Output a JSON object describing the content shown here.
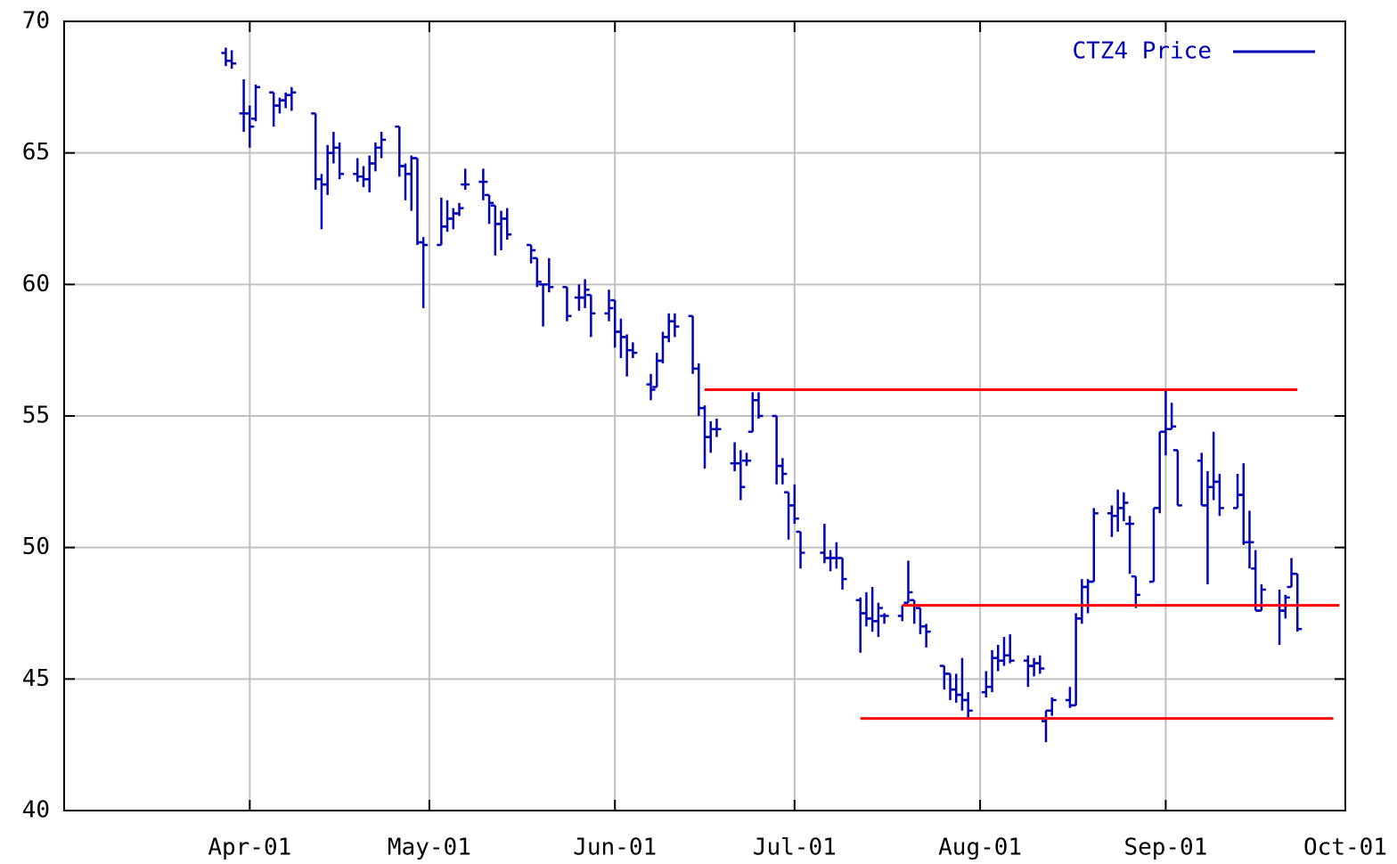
{
  "chart_data": {
    "type": "ohlc",
    "x": [
      "Mar-28",
      "Mar-29",
      "Mar-31",
      "Apr-01",
      "Apr-02",
      "Apr-05",
      "Apr-06",
      "Apr-07",
      "Apr-08",
      "Apr-12",
      "Apr-13",
      "Apr-14",
      "Apr-15",
      "Apr-16",
      "Apr-19",
      "Apr-20",
      "Apr-21",
      "Apr-22",
      "Apr-23",
      "Apr-26",
      "Apr-27",
      "Apr-28",
      "Apr-29",
      "Apr-30",
      "May-03",
      "May-04",
      "May-05",
      "May-06",
      "May-07",
      "May-10",
      "May-11",
      "May-12",
      "May-13",
      "May-14",
      "May-18",
      "May-19",
      "May-20",
      "May-21",
      "May-24",
      "May-26",
      "May-27",
      "May-28",
      "May-31",
      "Jun-01",
      "Jun-02",
      "Jun-03",
      "Jun-04",
      "Jun-07",
      "Jun-08",
      "Jun-09",
      "Jun-10",
      "Jun-11",
      "Jun-14",
      "Jun-15",
      "Jun-16",
      "Jun-17",
      "Jun-18",
      "Jun-21",
      "Jun-22",
      "Jun-23",
      "Jun-24",
      "Jun-25",
      "Jun-28",
      "Jun-29",
      "Jun-30",
      "Jul-01",
      "Jul-02",
      "Jul-06",
      "Jul-07",
      "Jul-08",
      "Jul-09",
      "Jul-12",
      "Jul-13",
      "Jul-14",
      "Jul-15",
      "Jul-16",
      "Jul-19",
      "Jul-20",
      "Jul-21",
      "Jul-22",
      "Jul-23",
      "Jul-26",
      "Jul-27",
      "Jul-28",
      "Jul-29",
      "Jul-30",
      "Aug-02",
      "Aug-03",
      "Aug-04",
      "Aug-05",
      "Aug-06",
      "Aug-09",
      "Aug-10",
      "Aug-11",
      "Aug-12",
      "Aug-13",
      "Aug-16",
      "Aug-17",
      "Aug-18",
      "Aug-19",
      "Aug-20",
      "Aug-23",
      "Aug-24",
      "Aug-25",
      "Aug-26",
      "Aug-27",
      "Aug-30",
      "Aug-31",
      "Sep-01",
      "Sep-02",
      "Sep-03",
      "Sep-07",
      "Sep-08",
      "Sep-09",
      "Sep-10",
      "Sep-13",
      "Sep-14",
      "Sep-15",
      "Sep-16",
      "Sep-17",
      "Sep-20",
      "Sep-21",
      "Sep-22",
      "Sep-23"
    ],
    "series": [
      {
        "name": "CTZ4 Price",
        "color": "#0000b4",
        "values": [
          [
            68.8,
            69.0,
            68.3,
            68.5
          ],
          [
            68.5,
            68.9,
            68.2,
            68.4
          ],
          [
            66.5,
            67.8,
            65.8,
            66.5
          ],
          [
            66.5,
            66.8,
            65.2,
            66.0
          ],
          [
            66.3,
            67.6,
            66.2,
            67.5
          ],
          [
            67.3,
            67.3,
            66.0,
            66.8
          ],
          [
            66.8,
            67.1,
            66.5,
            67.0
          ],
          [
            67.0,
            67.3,
            66.7,
            67.2
          ],
          [
            67.2,
            67.5,
            66.6,
            67.3
          ],
          [
            66.5,
            66.5,
            63.6,
            64.0
          ],
          [
            64.0,
            64.2,
            62.1,
            63.8
          ],
          [
            63.8,
            65.3,
            63.4,
            65.0
          ],
          [
            65.0,
            65.8,
            64.6,
            65.2
          ],
          [
            65.2,
            65.4,
            64.0,
            64.2
          ],
          [
            64.2,
            64.8,
            63.9,
            64.1
          ],
          [
            64.1,
            64.5,
            63.7,
            64.0
          ],
          [
            64.0,
            64.9,
            63.5,
            64.6
          ],
          [
            64.6,
            65.4,
            64.3,
            65.2
          ],
          [
            65.2,
            65.8,
            64.8,
            65.5
          ],
          [
            66.0,
            66.0,
            64.1,
            64.5
          ],
          [
            64.5,
            64.6,
            63.2,
            64.2
          ],
          [
            64.2,
            64.9,
            62.8,
            64.8
          ],
          [
            64.8,
            64.8,
            61.5,
            61.6
          ],
          [
            61.6,
            61.8,
            59.1,
            61.5
          ],
          [
            61.5,
            63.3,
            61.5,
            62.2
          ],
          [
            62.2,
            63.2,
            62.0,
            62.5
          ],
          [
            62.5,
            62.9,
            62.1,
            62.7
          ],
          [
            62.7,
            63.1,
            62.6,
            62.9
          ],
          [
            63.8,
            64.4,
            63.6,
            63.8
          ],
          [
            63.9,
            64.4,
            63.2,
            63.9
          ],
          [
            63.4,
            63.4,
            62.3,
            63.1
          ],
          [
            63.0,
            63.0,
            61.1,
            62.3
          ],
          [
            62.3,
            62.8,
            61.3,
            62.5
          ],
          [
            62.5,
            62.9,
            61.7,
            61.9
          ],
          [
            61.5,
            61.5,
            60.8,
            61.3
          ],
          [
            61.0,
            61.0,
            59.9,
            60.1
          ],
          [
            60.0,
            60.0,
            58.4,
            60.0
          ],
          [
            60.0,
            61.0,
            59.7,
            59.9
          ],
          [
            59.9,
            59.9,
            58.6,
            58.8
          ],
          [
            59.5,
            60.0,
            59.0,
            59.5
          ],
          [
            59.5,
            60.2,
            59.1,
            59.8
          ],
          [
            59.6,
            59.6,
            58.0,
            58.9
          ],
          [
            58.9,
            59.8,
            58.6,
            59.1
          ],
          [
            59.4,
            59.4,
            57.6,
            58.2
          ],
          [
            58.2,
            58.7,
            57.2,
            58.0
          ],
          [
            58.0,
            58.1,
            56.5,
            57.5
          ],
          [
            57.5,
            57.8,
            57.2,
            57.4
          ],
          [
            56.2,
            56.6,
            55.6,
            56.0
          ],
          [
            56.1,
            57.4,
            56.1,
            57.1
          ],
          [
            57.1,
            58.2,
            57.0,
            58.0
          ],
          [
            58.0,
            58.9,
            57.8,
            58.6
          ],
          [
            58.6,
            58.9,
            58.0,
            58.4
          ],
          [
            58.8,
            58.8,
            56.6,
            56.8
          ],
          [
            56.8,
            57.0,
            55.0,
            55.3
          ],
          [
            55.3,
            55.4,
            53.0,
            54.2
          ],
          [
            54.2,
            54.8,
            53.6,
            54.5
          ],
          [
            54.5,
            54.9,
            54.2,
            54.5
          ],
          [
            53.2,
            54.0,
            52.9,
            53.2
          ],
          [
            53.2,
            53.7,
            51.8,
            52.3
          ],
          [
            53.3,
            53.6,
            53.1,
            53.3
          ],
          [
            54.4,
            55.9,
            54.4,
            55.6
          ],
          [
            55.6,
            55.9,
            54.9,
            55.0
          ],
          [
            55.0,
            55.0,
            52.4,
            53.1
          ],
          [
            53.1,
            53.4,
            52.4,
            52.8
          ],
          [
            52.1,
            52.1,
            50.3,
            51.6
          ],
          [
            51.6,
            52.4,
            50.9,
            51.1
          ],
          [
            50.6,
            50.6,
            49.2,
            49.8
          ],
          [
            49.8,
            50.9,
            49.4,
            49.6
          ],
          [
            49.6,
            49.9,
            49.1,
            49.6
          ],
          [
            49.6,
            50.2,
            49.2,
            49.6
          ],
          [
            49.6,
            49.6,
            48.4,
            48.8
          ],
          [
            48.0,
            48.1,
            46.0,
            47.5
          ],
          [
            47.5,
            48.3,
            47.0,
            47.3
          ],
          [
            47.3,
            48.5,
            46.8,
            47.2
          ],
          [
            47.2,
            47.9,
            46.6,
            47.7
          ],
          [
            47.4,
            47.5,
            47.1,
            47.4
          ],
          [
            47.4,
            47.8,
            47.2,
            47.8
          ],
          [
            47.9,
            49.5,
            47.9,
            48.3
          ],
          [
            48.0,
            48.0,
            47.1,
            47.8
          ],
          [
            47.7,
            47.7,
            46.7,
            47.0
          ],
          [
            47.0,
            47.1,
            46.2,
            46.8
          ],
          [
            45.5,
            45.5,
            44.6,
            45.2
          ],
          [
            45.2,
            45.2,
            44.2,
            44.6
          ],
          [
            44.6,
            45.2,
            44.1,
            44.4
          ],
          [
            44.4,
            45.8,
            43.8,
            44.2
          ],
          [
            44.2,
            44.5,
            43.5,
            43.8
          ],
          [
            44.5,
            45.3,
            44.3,
            44.7
          ],
          [
            44.7,
            46.1,
            44.5,
            45.8
          ],
          [
            45.8,
            46.3,
            45.3,
            45.7
          ],
          [
            45.7,
            46.6,
            45.5,
            45.9
          ],
          [
            45.9,
            46.7,
            45.6,
            45.7
          ],
          [
            45.7,
            45.9,
            44.7,
            45.5
          ],
          [
            45.5,
            45.8,
            45.1,
            45.6
          ],
          [
            45.6,
            45.9,
            45.2,
            45.4
          ],
          [
            43.4,
            43.8,
            42.6,
            43.8
          ],
          [
            43.8,
            44.3,
            43.6,
            44.2
          ],
          [
            44.2,
            44.7,
            43.9,
            44.0
          ],
          [
            44.0,
            47.5,
            44.0,
            47.3
          ],
          [
            47.3,
            48.8,
            47.1,
            48.5
          ],
          [
            48.5,
            48.8,
            47.5,
            48.7
          ],
          [
            48.7,
            51.5,
            48.7,
            51.3
          ],
          [
            51.3,
            51.6,
            50.4,
            51.2
          ],
          [
            51.2,
            52.2,
            50.6,
            51.5
          ],
          [
            51.5,
            52.1,
            51.0,
            51.7
          ],
          [
            50.9,
            51.2,
            49.0,
            50.9
          ],
          [
            48.9,
            48.9,
            47.7,
            48.2
          ],
          [
            48.7,
            51.5,
            48.7,
            51.5
          ],
          [
            51.5,
            54.4,
            51.3,
            54.4
          ],
          [
            54.4,
            56.0,
            53.5,
            54.5
          ],
          [
            54.5,
            55.5,
            54.5,
            54.6
          ],
          [
            53.7,
            53.7,
            51.6,
            51.6
          ],
          [
            53.3,
            53.6,
            51.6,
            51.6
          ],
          [
            51.6,
            52.9,
            48.6,
            52.3
          ],
          [
            52.3,
            54.4,
            51.8,
            52.5
          ],
          [
            52.5,
            52.8,
            51.2,
            51.5
          ],
          [
            51.5,
            52.8,
            51.5,
            52.0
          ],
          [
            52.0,
            53.2,
            50.1,
            50.2
          ],
          [
            50.2,
            51.4,
            49.2,
            50.2
          ],
          [
            49.2,
            49.9,
            47.6,
            47.6
          ],
          [
            47.6,
            48.6,
            47.6,
            48.4
          ],
          [
            47.8,
            48.4,
            46.3,
            47.6
          ],
          [
            47.6,
            48.2,
            47.3,
            48.1
          ],
          [
            48.5,
            49.6,
            48.5,
            49.0
          ],
          [
            49.0,
            49.0,
            46.8,
            46.9
          ]
        ]
      }
    ],
    "lines": [
      {
        "x": [
          "Jun-16",
          "Sep-23"
        ],
        "value": 56,
        "color": "#ff0000"
      },
      {
        "x": [
          "Jul-19",
          "Sep-30"
        ],
        "value": 47.8,
        "color": "#ff0000"
      },
      {
        "x": [
          "Jul-12",
          "Sep-29"
        ],
        "value": 43.5,
        "color": "#ff0000"
      }
    ],
    "xlim": [
      "Mar-01",
      "Oct-01"
    ],
    "xticks": [
      "Apr-01",
      "May-01",
      "Jun-01",
      "Jul-01",
      "Aug-01",
      "Sep-01",
      "Oct-01"
    ],
    "ylim": [
      40,
      70
    ],
    "yticks": [
      40,
      45,
      50,
      55,
      60,
      65,
      70
    ],
    "grid": true,
    "legend": "top-right"
  }
}
